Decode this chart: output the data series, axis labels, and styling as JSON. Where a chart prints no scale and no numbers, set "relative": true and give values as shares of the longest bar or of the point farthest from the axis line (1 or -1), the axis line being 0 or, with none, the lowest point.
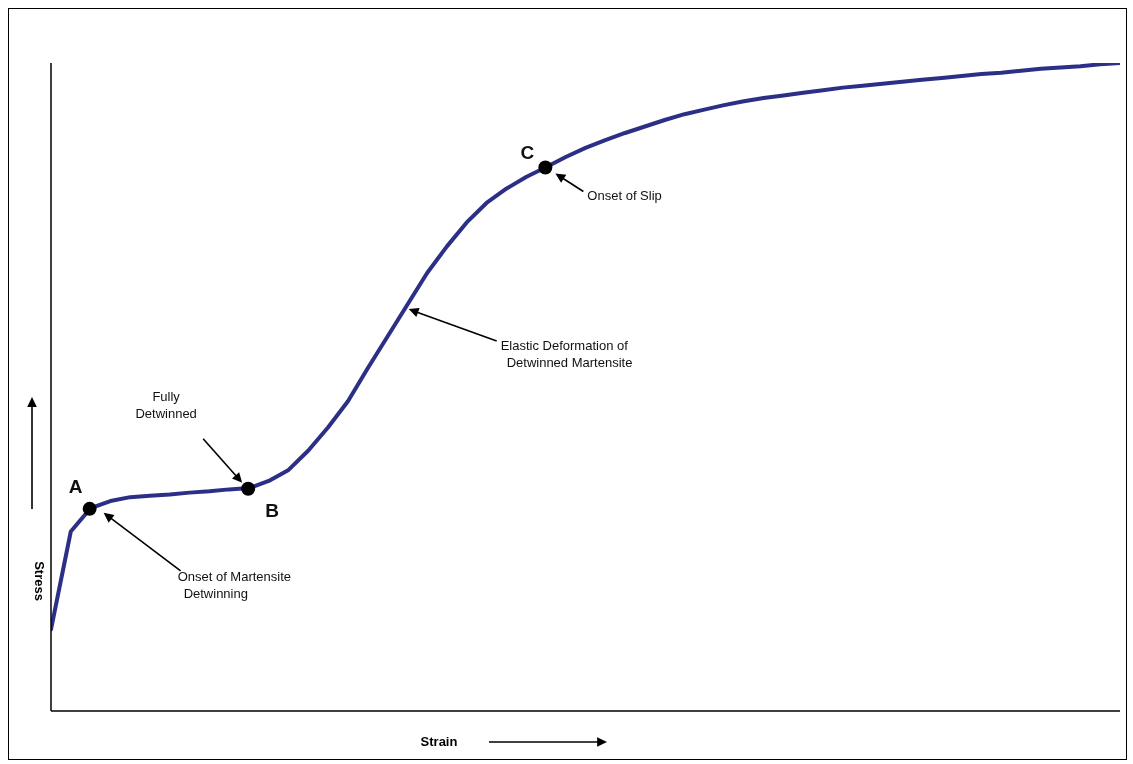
{
  "chart_data": {
    "type": "line",
    "relative": true,
    "xlabel": "Strain",
    "ylabel": "Stress",
    "tick_labels": false,
    "legend": false,
    "color": "#2b2f86",
    "categories": [
      null,
      null,
      null,
      null,
      null,
      null,
      null,
      null,
      null,
      null,
      null,
      null,
      null,
      null,
      null,
      null,
      null,
      null,
      null,
      null,
      null,
      null,
      null,
      null,
      null,
      null,
      null,
      null,
      null,
      null,
      null,
      null,
      null,
      null,
      null,
      null,
      null,
      null,
      null,
      null,
      null,
      null,
      null,
      null,
      null,
      null,
      null,
      null,
      null,
      null,
      null,
      null,
      null,
      null,
      null
    ],
    "values": [
      0.126,
      0.277,
      0.313,
      0.324,
      0.33,
      0.332,
      0.334,
      0.337,
      0.339,
      0.342,
      0.344,
      0.355,
      0.372,
      0.402,
      0.438,
      0.478,
      0.529,
      0.578,
      0.627,
      0.676,
      0.717,
      0.754,
      0.784,
      0.806,
      0.824,
      0.839,
      0.855,
      0.869,
      0.881,
      0.892,
      0.902,
      0.912,
      0.921,
      0.928,
      0.935,
      0.941,
      0.946,
      0.95,
      0.954,
      0.958,
      0.962,
      0.965,
      0.968,
      0.971,
      0.974,
      0.977,
      0.98,
      0.983,
      0.985,
      0.988,
      0.991,
      0.993,
      0.995,
      0.998,
      1.0
    ],
    "annotations": [
      "A",
      "B",
      "C",
      "Fully Detwinned",
      "Onset of Martensite Detwinning",
      "Elastic Deformation of Detwinned Martensite",
      "Onset of Slip"
    ]
  }
}
